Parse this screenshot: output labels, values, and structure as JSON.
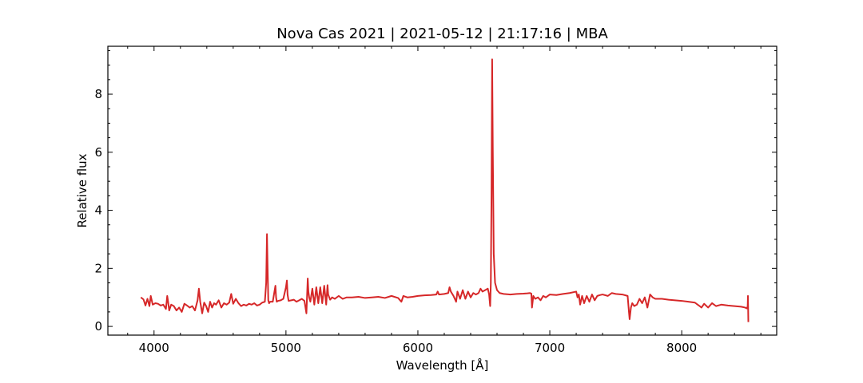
{
  "chart_data": {
    "type": "line",
    "title": "Nova Cas 2021 | 2021-05-12 | 21:17:16 | MBA",
    "xlabel": "Wavelength [Å]",
    "ylabel": "Relative flux",
    "xlim": [
      3650,
      8720
    ],
    "ylim": [
      -0.3,
      9.65
    ],
    "xticks": [
      4000,
      5000,
      6000,
      7000,
      8000
    ],
    "yticks": [
      0,
      2,
      4,
      6,
      8
    ],
    "grid": false,
    "colors": {
      "series": "#d62728"
    },
    "series": [
      {
        "x": [
          3900,
          3920,
          3935,
          3950,
          3965,
          3975,
          3990,
          4010,
          4030,
          4050,
          4070,
          4090,
          4100,
          4105,
          4115,
          4130,
          4150,
          4170,
          4190,
          4210,
          4230,
          4250,
          4270,
          4290,
          4310,
          4330,
          4340,
          4350,
          4365,
          4380,
          4395,
          4410,
          4425,
          4440,
          4455,
          4470,
          4490,
          4510,
          4530,
          4550,
          4570,
          4585,
          4600,
          4620,
          4640,
          4660,
          4680,
          4700,
          4720,
          4740,
          4760,
          4780,
          4800,
          4820,
          4840,
          4850,
          4856,
          4861,
          4866,
          4872,
          4880,
          4900,
          4920,
          4925,
          4930,
          4940,
          4960,
          4980,
          5000,
          5007,
          5012,
          5020,
          5040,
          5060,
          5080,
          5100,
          5120,
          5140,
          5155,
          5165,
          5170,
          5176,
          5185,
          5200,
          5215,
          5230,
          5245,
          5260,
          5275,
          5290,
          5305,
          5315,
          5320,
          5335,
          5350,
          5370,
          5400,
          5430,
          5460,
          5500,
          5550,
          5600,
          5650,
          5700,
          5750,
          5800,
          5850,
          5875,
          5890,
          5920,
          5960,
          6000,
          6050,
          6100,
          6140,
          6150,
          6160,
          6200,
          6230,
          6240,
          6250,
          6270,
          6290,
          6300,
          6320,
          6340,
          6360,
          6380,
          6400,
          6420,
          6440,
          6460,
          6475,
          6490,
          6510,
          6530,
          6540,
          6548,
          6553,
          6558,
          6563,
          6568,
          6575,
          6585,
          6600,
          6620,
          6650,
          6700,
          6750,
          6800,
          6830,
          6850,
          6860,
          6865,
          6875,
          6890,
          6910,
          6930,
          6950,
          6970,
          7000,
          7050,
          7100,
          7150,
          7200,
          7210,
          7220,
          7230,
          7245,
          7260,
          7280,
          7300,
          7320,
          7340,
          7360,
          7380,
          7400,
          7440,
          7470,
          7500,
          7550,
          7590,
          7600,
          7605,
          7615,
          7625,
          7640,
          7660,
          7680,
          7700,
          7720,
          7740,
          7760,
          7780,
          7800,
          7850,
          7900,
          7950,
          8000,
          8050,
          8100,
          8130,
          8150,
          8170,
          8200,
          8230,
          8260,
          8300,
          8350,
          8400,
          8450,
          8480,
          8495,
          8500,
          8502,
          8505
        ],
        "y": [
          1.0,
          0.93,
          0.72,
          0.95,
          0.7,
          1.05,
          0.75,
          0.8,
          0.78,
          0.72,
          0.75,
          0.6,
          1.05,
          0.9,
          0.55,
          0.75,
          0.7,
          0.55,
          0.65,
          0.5,
          0.78,
          0.72,
          0.65,
          0.7,
          0.55,
          0.9,
          1.3,
          0.85,
          0.45,
          0.82,
          0.7,
          0.5,
          0.85,
          0.65,
          0.8,
          0.75,
          0.9,
          0.65,
          0.8,
          0.75,
          0.82,
          1.12,
          0.78,
          0.95,
          0.8,
          0.7,
          0.75,
          0.72,
          0.78,
          0.75,
          0.8,
          0.72,
          0.75,
          0.82,
          0.85,
          1.5,
          3.18,
          2.0,
          0.9,
          0.8,
          0.85,
          0.85,
          1.4,
          1.0,
          0.85,
          0.88,
          0.9,
          0.95,
          1.35,
          1.58,
          1.1,
          0.88,
          0.9,
          0.92,
          0.85,
          0.9,
          0.95,
          0.88,
          0.45,
          1.65,
          1.2,
          1.0,
          0.85,
          1.3,
          0.75,
          1.35,
          0.8,
          1.35,
          0.8,
          1.4,
          0.75,
          1.42,
          1.1,
          0.92,
          1.0,
          0.95,
          1.05,
          0.95,
          1.0,
          1.0,
          1.02,
          0.98,
          1.0,
          1.02,
          0.98,
          1.05,
          0.98,
          0.85,
          1.05,
          1.0,
          1.02,
          1.05,
          1.07,
          1.08,
          1.1,
          1.2,
          1.1,
          1.12,
          1.15,
          1.35,
          1.2,
          1.05,
          0.85,
          1.2,
          0.95,
          1.25,
          0.95,
          1.2,
          1.0,
          1.15,
          1.1,
          1.15,
          1.3,
          1.2,
          1.25,
          1.3,
          1.1,
          0.7,
          1.5,
          4.5,
          9.2,
          6.0,
          2.5,
          1.5,
          1.25,
          1.15,
          1.12,
          1.1,
          1.12,
          1.13,
          1.14,
          1.15,
          1.13,
          0.65,
          1.05,
          0.95,
          1.0,
          0.9,
          1.05,
          1.0,
          1.1,
          1.08,
          1.12,
          1.15,
          1.2,
          1.0,
          1.1,
          0.75,
          1.05,
          0.8,
          1.05,
          0.85,
          1.1,
          0.9,
          1.05,
          1.08,
          1.1,
          1.05,
          1.15,
          1.12,
          1.1,
          1.05,
          0.5,
          0.25,
          0.65,
          0.8,
          0.7,
          0.75,
          0.95,
          0.8,
          1.0,
          0.65,
          1.1,
          1.0,
          0.95,
          0.95,
          0.92,
          0.9,
          0.88,
          0.85,
          0.82,
          0.72,
          0.65,
          0.78,
          0.65,
          0.8,
          0.7,
          0.75,
          0.72,
          0.7,
          0.68,
          0.65,
          0.62,
          0.7,
          1.05,
          0.15
        ]
      }
    ]
  }
}
